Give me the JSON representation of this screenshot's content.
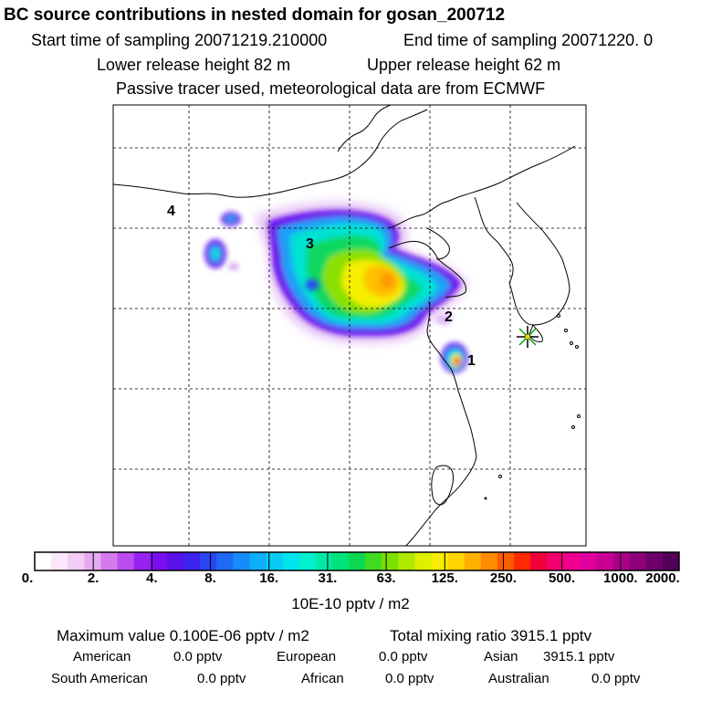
{
  "header": {
    "title": "BC  source contributions in nested domain for gosan_200712",
    "start_label": "Start time of sampling 20071219.210000",
    "end_label": "End time of sampling 20071220.     0",
    "lower_release": "Lower release height   82 m",
    "upper_release": "Upper release height   62 m",
    "tracer_note": "Passive tracer used, meteorological data are from ECMWF"
  },
  "map": {
    "region_labels": [
      "1",
      "2",
      "3",
      "4"
    ],
    "receptor_marker": "star-marker"
  },
  "colorbar": {
    "colors": [
      "#ffffff",
      "#fbe6fb",
      "#f2ccf5",
      "#e6aaf0",
      "#d47aee",
      "#bb4cf0",
      "#9a22f0",
      "#7a0ef0",
      "#5a12ea",
      "#3c24ee",
      "#2a46f4",
      "#1e6af6",
      "#168cf8",
      "#0eaef8",
      "#08ccf6",
      "#00e4ee",
      "#00f0d0",
      "#00eaa6",
      "#00e27a",
      "#0ad850",
      "#40dc22",
      "#7ce000",
      "#b0e800",
      "#dcf000",
      "#f8ec00",
      "#ffd400",
      "#ffb000",
      "#ff8c00",
      "#ff5c00",
      "#ff2a00",
      "#f0003a",
      "#f4006e",
      "#f00090",
      "#e000a0",
      "#c80094",
      "#aa0088",
      "#8c007a",
      "#6e006a",
      "#540058"
    ],
    "tick_labels": [
      "0.",
      "2.",
      "4.",
      "8.",
      "16.",
      "31.",
      "63.",
      "125.",
      "250.",
      "500.",
      "1000.",
      "2000."
    ],
    "units": "10E-10 pptv / m2"
  },
  "summary": {
    "max_value": "Maximum value  0.100E-06 pptv / m2",
    "total_mixing": "Total mixing ratio     3915.1 pptv",
    "regions": [
      {
        "name": "American",
        "value": "0.0 pptv"
      },
      {
        "name": "European",
        "value": "0.0 pptv"
      },
      {
        "name": "Asian",
        "value": "3915.1 pptv"
      },
      {
        "name": "South American",
        "value": "0.0 pptv"
      },
      {
        "name": "African",
        "value": "0.0 pptv"
      },
      {
        "name": "Australian",
        "value": "0.0 pptv"
      }
    ]
  }
}
